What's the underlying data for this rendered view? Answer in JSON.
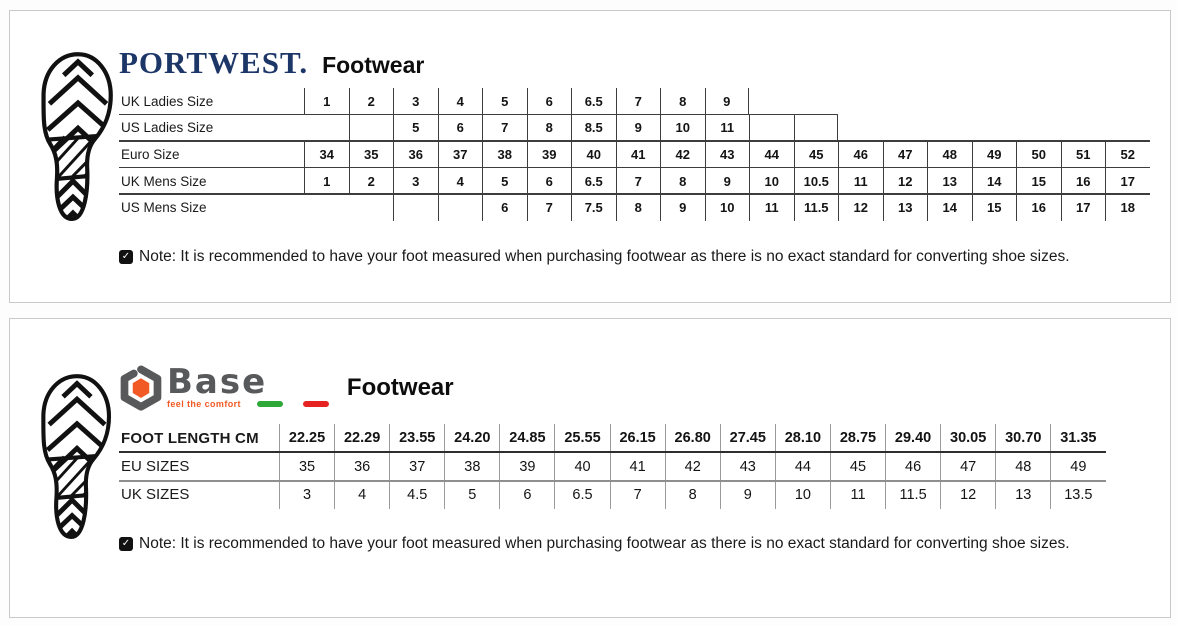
{
  "portwest": {
    "brand": "PORTWEST.",
    "product_line": "Footwear",
    "note": "Note: It is recommended to have your foot measured when purchasing footwear as there is no exact standard for converting shoe sizes.",
    "table": {
      "rows": [
        {
          "label": "UK Ladies Size",
          "values": [
            "1",
            "2",
            "3",
            "4",
            "5",
            "6",
            "6.5",
            "7",
            "8",
            "9",
            null,
            null,
            null,
            null,
            null,
            null,
            null,
            null,
            null
          ],
          "wall_from": 0,
          "end_wall": true,
          "bottom_cells": 12
        },
        {
          "label": "US Ladies Size",
          "values": [
            "",
            "",
            "5",
            "6",
            "7",
            "8",
            "8.5",
            "9",
            "10",
            "11",
            "",
            "",
            null,
            null,
            null,
            null,
            null,
            null,
            null
          ],
          "wall_from": 1,
          "end_wall": true,
          "bottom_cells": 19
        },
        {
          "label": "Euro Size",
          "values": [
            "34",
            "35",
            "36",
            "37",
            "38",
            "39",
            "40",
            "41",
            "42",
            "43",
            "44",
            "45",
            "46",
            "47",
            "48",
            "49",
            "50",
            "51",
            "52"
          ],
          "wall_from": 0,
          "end_wall": false,
          "bottom_cells": 19
        },
        {
          "label": "UK Mens Size",
          "values": [
            "1",
            "2",
            "3",
            "4",
            "5",
            "6",
            "6.5",
            "7",
            "8",
            "9",
            "10",
            "10.5",
            "11",
            "12",
            "13",
            "14",
            "15",
            "16",
            "17"
          ],
          "wall_from": 0,
          "end_wall": false,
          "bottom_cells": 19
        },
        {
          "label": "US Mens Size",
          "values": [
            "",
            "",
            "",
            "",
            "6",
            "7",
            "7.5",
            "8",
            "9",
            "10",
            "11",
            "11.5",
            "12",
            "13",
            "14",
            "15",
            "16",
            "17",
            "18"
          ],
          "wall_from": 2,
          "end_wall": false,
          "bottom_cells": 0
        }
      ]
    }
  },
  "base": {
    "brand": "Base",
    "tagline": "feel the comfort",
    "product_line": "Footwear",
    "note": "Note: It is recommended to have your foot measured when purchasing footwear as there is no exact standard for converting shoe sizes.",
    "table": {
      "rows": [
        {
          "label": "FOOT LENGTH CM",
          "values": [
            "22.25",
            "22.29",
            "23.55",
            "24.20",
            "24.85",
            "25.55",
            "26.15",
            "26.80",
            "27.45",
            "28.10",
            "28.75",
            "29.40",
            "30.05",
            "30.70",
            "31.35"
          ],
          "wall_from": 0,
          "end_wall": false,
          "bottom_cells": 15
        },
        {
          "label": "EU SIZES",
          "values": [
            "35",
            "36",
            "37",
            "38",
            "39",
            "40",
            "41",
            "42",
            "43",
            "44",
            "45",
            "46",
            "47",
            "48",
            "49"
          ],
          "wall_from": 0,
          "end_wall": false,
          "bottom_cells": 15
        },
        {
          "label": "UK SIZES",
          "values": [
            "3",
            "4",
            "4.5",
            "5",
            "6",
            "6.5",
            "7",
            "8",
            "9",
            "10",
            "11",
            "11.5",
            "12",
            "13",
            "13.5"
          ],
          "wall_from": 0,
          "end_wall": false,
          "bottom_cells": 0
        }
      ]
    }
  },
  "icons": {
    "note_glyph": "✓",
    "footprint": "boot-print-logo",
    "base_mark": "hex-nut-icon"
  },
  "colors": {
    "portwest_navy": "#1c3667",
    "base_gray": "#58595b",
    "base_orange": "#f15a24",
    "flag_green": "#2ea836",
    "flag_red": "#e52421"
  }
}
